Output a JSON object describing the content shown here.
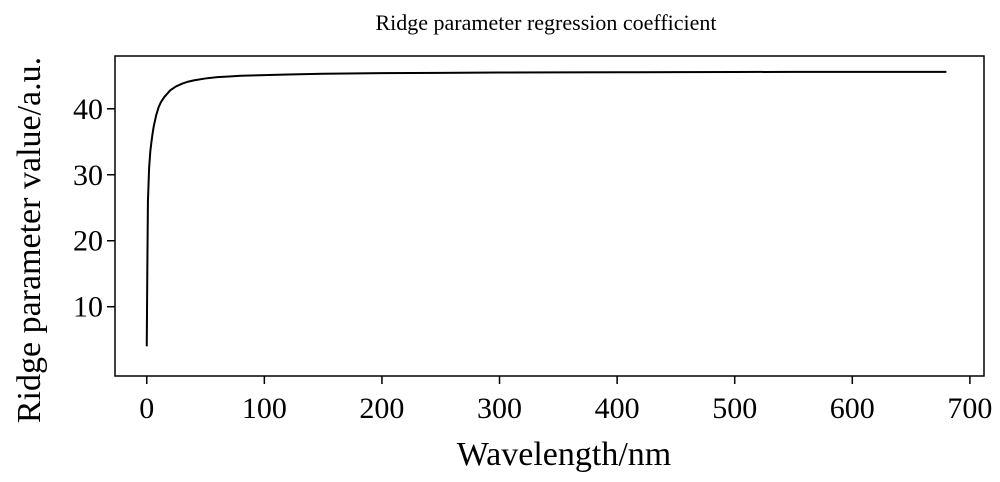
{
  "chart_data": {
    "type": "line",
    "title": "Ridge parameter regression coefficient",
    "xlabel": "Wavelength/nm",
    "ylabel": "Ridge parameter value/a.u.",
    "xlim": [
      -27,
      712
    ],
    "ylim": [
      -0.5,
      48
    ],
    "x_ticks": [
      0,
      100,
      200,
      300,
      400,
      500,
      600,
      700
    ],
    "y_ticks": [
      10,
      20,
      30,
      40
    ],
    "grid": false,
    "legend": "none",
    "line_color": "#000000",
    "series": [
      {
        "x": [
          0,
          0.5,
          1,
          2,
          3,
          4,
          5,
          6,
          8,
          10,
          12,
          15,
          18,
          20,
          25,
          30,
          35,
          40,
          50,
          60,
          70,
          80,
          100,
          120,
          150,
          200,
          250,
          300,
          350,
          400,
          450,
          500,
          550,
          600,
          650,
          680
        ],
        "values": [
          4,
          16,
          26,
          31,
          33.5,
          35,
          36.3,
          37.4,
          39,
          40.2,
          41,
          41.8,
          42.4,
          42.8,
          43.4,
          43.8,
          44.1,
          44.3,
          44.6,
          44.8,
          44.9,
          45,
          45.1,
          45.2,
          45.3,
          45.4,
          45.45,
          45.5,
          45.52,
          45.54,
          45.56,
          45.58,
          45.59,
          45.6,
          45.6,
          45.6
        ]
      }
    ]
  }
}
